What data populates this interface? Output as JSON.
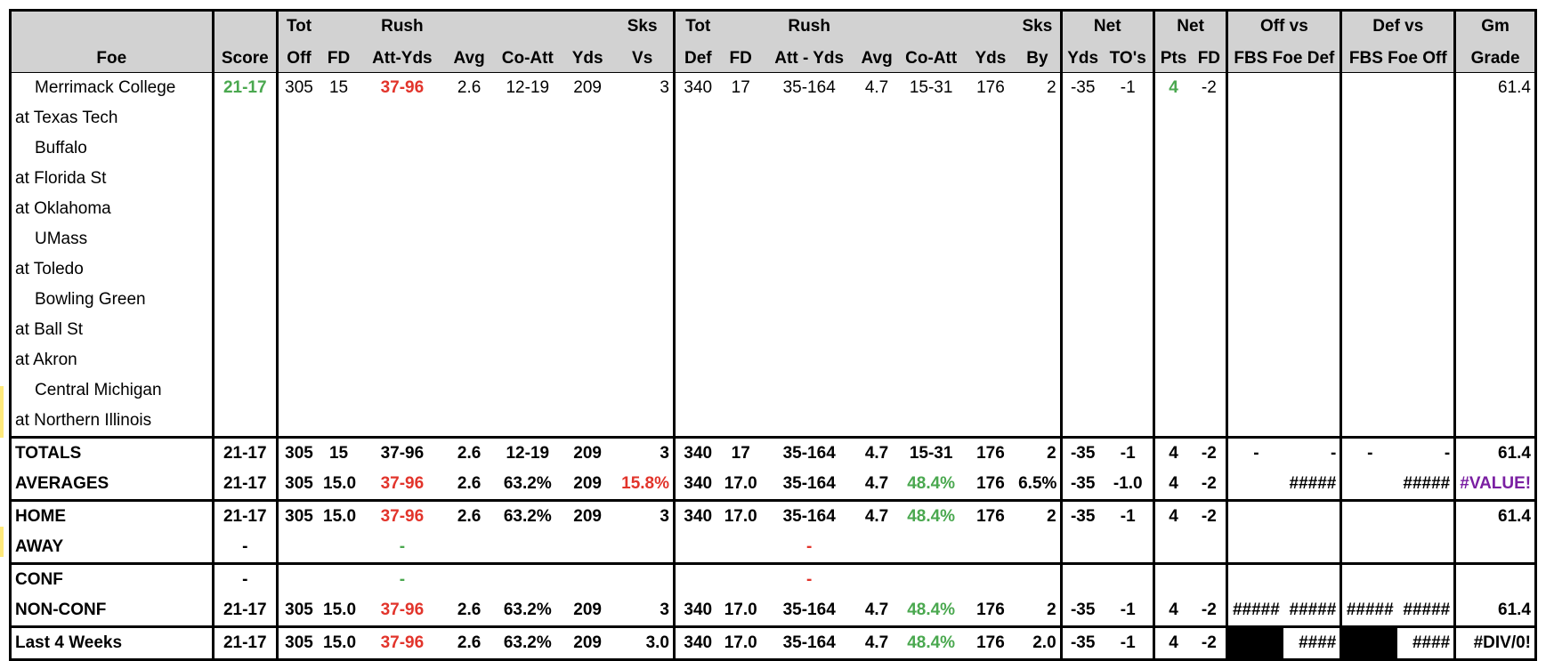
{
  "header": {
    "row1": {
      "tot": "Tot",
      "rush": "Rush",
      "sks": "Sks",
      "tot_def": "Tot",
      "rush_def": "Rush",
      "sks_by": "Sks",
      "net": "Net",
      "net2": "Net",
      "off_vs": "Off vs",
      "def_vs": "Def vs",
      "gm": "Gm"
    },
    "row2": {
      "foe": "Foe",
      "score": "Score",
      "off": "Off",
      "fd": "FD",
      "att_yds": "Att-Yds",
      "avg": "Avg",
      "co_att": "Co-Att",
      "yds": "Yds",
      "vs": "Vs",
      "def": "Def",
      "fd_d": "FD",
      "att_yds_d": "Att - Yds",
      "avg_d": "Avg",
      "co_att_d": "Co-Att",
      "yds_d": "Yds",
      "by": "By",
      "net_yds": "Yds",
      "net_to": "TO's",
      "net_pts": "Pts",
      "net_fd": "FD",
      "fbs_def": "FBS Foe Def",
      "fbs_off": "FBS Foe Off",
      "grade": "Grade"
    }
  },
  "games": [
    {
      "foe": "Merrimack College",
      "home": true,
      "score": "21-17",
      "off": "305",
      "fd": "15",
      "rush": "37-96",
      "avg": "2.6",
      "co_att": "12-19",
      "yds": "209",
      "sks_vs": "3",
      "def": "340",
      "fd_d": "17",
      "rush_d": "35-164",
      "avg_d": "4.7",
      "co_att_d": "15-31",
      "yds_d": "176",
      "sks_by": "2",
      "net_yds": "-35",
      "net_to": "-1",
      "net_pts": "4",
      "net_fd": "-2",
      "grade": "61.4"
    },
    {
      "foe": "at Texas Tech",
      "home": false
    },
    {
      "foe": "Buffalo",
      "home": true
    },
    {
      "foe": "at Florida St",
      "home": false
    },
    {
      "foe": "at Oklahoma",
      "home": false
    },
    {
      "foe": "UMass",
      "home": true
    },
    {
      "foe": "at Toledo",
      "home": false
    },
    {
      "foe": "Bowling Green",
      "home": true
    },
    {
      "foe": "at Ball St",
      "home": false
    },
    {
      "foe": "at Akron",
      "home": false
    },
    {
      "foe": "Central Michigan",
      "home": true
    },
    {
      "foe": "at Northern Illinois",
      "home": false
    }
  ],
  "totals": {
    "label": "TOTALS",
    "score": "21-17",
    "off": "305",
    "fd": "15",
    "rush": "37-96",
    "avg": "2.6",
    "co_att": "12-19",
    "yds": "209",
    "sks_vs": "3",
    "def": "340",
    "fd_d": "17",
    "rush_d": "35-164",
    "avg_d": "4.7",
    "co_att_d": "15-31",
    "yds_d": "176",
    "sks_by": "2",
    "net_yds": "-35",
    "net_to": "-1",
    "net_pts": "4",
    "net_fd": "-2",
    "off_a": "-",
    "off_b": "-",
    "def_a": "-",
    "def_b": "-",
    "grade": "61.4"
  },
  "averages": {
    "label": "AVERAGES",
    "score": "21-17",
    "off": "305",
    "fd": "15.0",
    "rush": "37-96",
    "avg": "2.6",
    "co_att": "63.2%",
    "yds": "209",
    "sks_vs": "15.8%",
    "def": "340",
    "fd_d": "17.0",
    "rush_d": "35-164",
    "avg_d": "4.7",
    "co_att_d": "48.4%",
    "yds_d": "176",
    "sks_by": "6.5%",
    "net_yds": "-35",
    "net_to": "-1.0",
    "net_pts": "4",
    "net_fd": "-2",
    "off_b": "#####",
    "def_b": "#####",
    "grade": "#VALUE!"
  },
  "home": {
    "label": "HOME",
    "score": "21-17",
    "off": "305",
    "fd": "15.0",
    "rush": "37-96",
    "avg": "2.6",
    "co_att": "63.2%",
    "yds": "209",
    "sks_vs": "3",
    "def": "340",
    "fd_d": "17.0",
    "rush_d": "35-164",
    "avg_d": "4.7",
    "co_att_d": "48.4%",
    "yds_d": "176",
    "sks_by": "2",
    "net_yds": "-35",
    "net_to": "-1",
    "net_pts": "4",
    "net_fd": "-2",
    "grade": "61.4"
  },
  "away": {
    "label": "AWAY",
    "score": "-",
    "rush": "-",
    "rush_d": "-"
  },
  "conf": {
    "label": "CONF",
    "score": "-",
    "rush": "-",
    "rush_d": "-"
  },
  "nonconf": {
    "label": "NON-CONF",
    "score": "21-17",
    "off": "305",
    "fd": "15.0",
    "rush": "37-96",
    "avg": "2.6",
    "co_att": "63.2%",
    "yds": "209",
    "sks_vs": "3",
    "def": "340",
    "fd_d": "17.0",
    "rush_d": "35-164",
    "avg_d": "4.7",
    "co_att_d": "48.4%",
    "yds_d": "176",
    "sks_by": "2",
    "net_yds": "-35",
    "net_to": "-1",
    "net_pts": "4",
    "net_fd": "-2",
    "off_a": "#####",
    "off_b": "#####",
    "def_a": "#####",
    "def_b": "#####",
    "grade": "61.4"
  },
  "last4": {
    "label": "Last 4 Weeks",
    "score": "21-17",
    "off": "305",
    "fd": "15.0",
    "rush": "37-96",
    "avg": "2.6",
    "co_att": "63.2%",
    "yds": "209",
    "sks_vs": "3.0",
    "def": "340",
    "fd_d": "17.0",
    "rush_d": "35-164",
    "avg_d": "4.7",
    "co_att_d": "48.4%",
    "yds_d": "176",
    "sks_by": "2.0",
    "net_yds": "-35",
    "net_to": "-1",
    "net_pts": "4",
    "net_fd": "-2",
    "off_b": "####",
    "def_b": "####",
    "grade": "#DIV/0!"
  },
  "colors": {
    "header_bg": "#d2d2d2",
    "red": "#e2342b",
    "green": "#4aa84f",
    "purple": "#7a1fa2",
    "marker_yellow": "#ffe97a"
  }
}
